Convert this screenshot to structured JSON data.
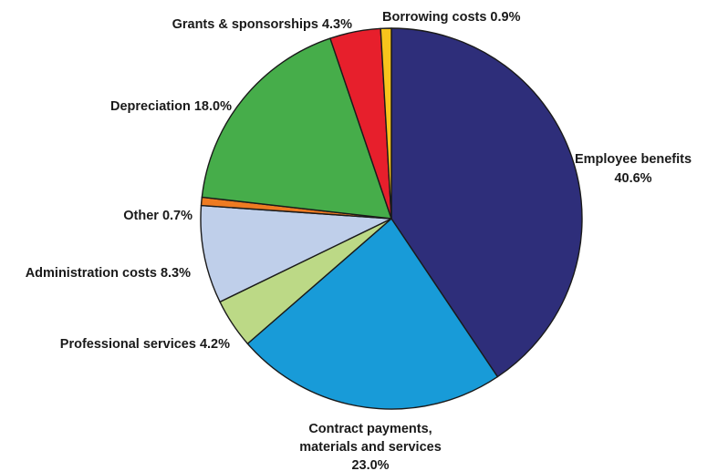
{
  "chart_data": {
    "type": "pie",
    "title": "",
    "start_angle_deg": 90,
    "direction": "clockwise",
    "legend": "none",
    "slices": [
      {
        "name": "Employee benefits",
        "value": 40.6,
        "color": "#2e2e7a",
        "label_lines": [
          "Employee benefits",
          "40.6%"
        ]
      },
      {
        "name": "Contract payments, materials and services",
        "value": 23.0,
        "color": "#189bd8",
        "label_lines": [
          "Contract payments,",
          "materials and services",
          "23.0%"
        ]
      },
      {
        "name": "Professional services",
        "value": 4.2,
        "color": "#bcd986",
        "label_lines": [
          "Professional services 4.2%"
        ]
      },
      {
        "name": "Administration costs",
        "value": 8.3,
        "color": "#bfcfea",
        "label_lines": [
          "Administration costs 8.3%"
        ]
      },
      {
        "name": "Other",
        "value": 0.7,
        "color": "#ee7b22",
        "label_lines": [
          "Other 0.7%"
        ]
      },
      {
        "name": "Depreciation",
        "value": 18.0,
        "color": "#46ad4a",
        "label_lines": [
          "Depreciation 18.0%"
        ]
      },
      {
        "name": "Grants & sponsorships",
        "value": 4.3,
        "color": "#e71f2c",
        "label_lines": [
          "Grants & sponsorships 4.3%"
        ]
      },
      {
        "name": "Borrowing costs",
        "value": 0.9,
        "color": "#f8c41c",
        "label_lines": [
          "Borrowing costs 0.9%"
        ]
      }
    ]
  }
}
